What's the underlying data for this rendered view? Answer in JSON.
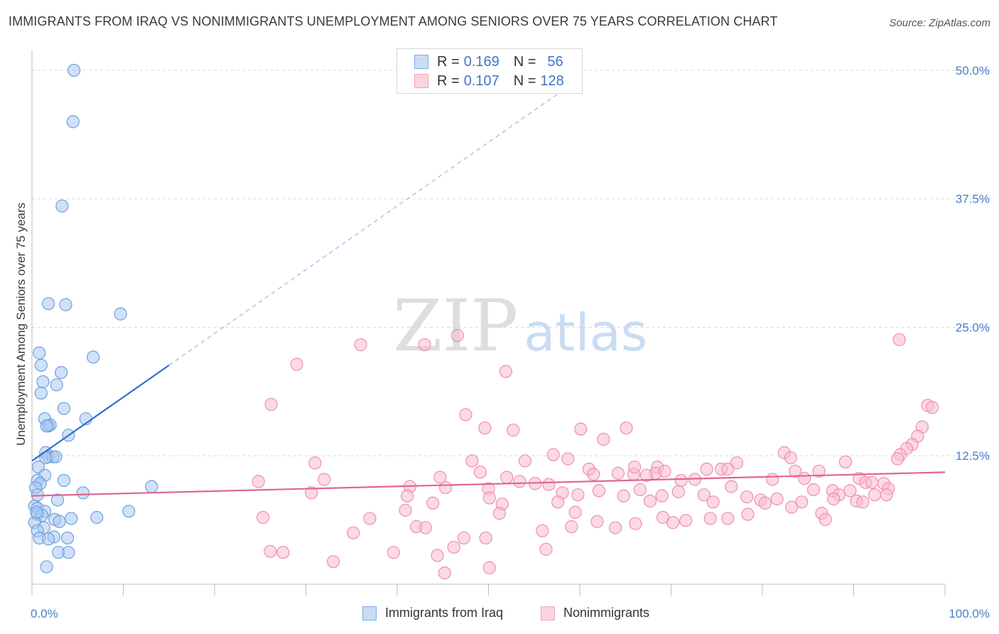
{
  "title": "IMMIGRANTS FROM IRAQ VS NONIMMIGRANTS UNEMPLOYMENT AMONG SENIORS OVER 75 YEARS CORRELATION CHART",
  "source": "Source: ZipAtlas.com",
  "watermark": {
    "part1": "ZIP",
    "part2": "atlas"
  },
  "legend": {
    "r_label": "R =",
    "n_label": "N =",
    "series": [
      {
        "name": "Immigrants from Iraq",
        "r": "0.169",
        "n": "56",
        "color": "#aac8f0",
        "stroke": "#6f9fe0"
      },
      {
        "name": "Nonimmigrants",
        "r": "0.107",
        "n": "128",
        "color": "#f7bccd",
        "stroke": "#ee8fab"
      }
    ]
  },
  "chart_data": {
    "type": "scatter",
    "title": "IMMIGRANTS FROM IRAQ VS NONIMMIGRANTS UNEMPLOYMENT AMONG SENIORS OVER 75 YEARS CORRELATION CHART",
    "xlabel": "",
    "ylabel": "Unemployment Among Seniors over 75 years",
    "xlim": [
      0,
      100
    ],
    "ylim": [
      0,
      52
    ],
    "x_tick_labels": [
      "0.0%",
      "100.0%"
    ],
    "y_ticks": [
      12.5,
      25.0,
      37.5,
      50.0
    ],
    "y_tick_labels": [
      "12.5%",
      "25.0%",
      "37.5%",
      "50.0%"
    ],
    "grid": "dashed horizontal",
    "series": [
      {
        "name": "Immigrants from Iraq",
        "color": "#aac8f0",
        "stroke": "#6f9fe0",
        "trend": {
          "x0": 0,
          "y0": 12.0,
          "x1": 15,
          "y1": 21.3,
          "dash_to_x": 60
        },
        "points": [
          [
            4.6,
            50.0
          ],
          [
            4.5,
            45.0
          ],
          [
            3.3,
            36.8
          ],
          [
            1.8,
            27.3
          ],
          [
            3.7,
            27.2
          ],
          [
            9.7,
            26.3
          ],
          [
            0.8,
            22.5
          ],
          [
            1.0,
            21.3
          ],
          [
            3.2,
            20.6
          ],
          [
            6.7,
            22.1
          ],
          [
            1.2,
            19.7
          ],
          [
            2.7,
            19.4
          ],
          [
            1.0,
            18.6
          ],
          [
            3.5,
            17.1
          ],
          [
            1.4,
            16.1
          ],
          [
            5.9,
            16.1
          ],
          [
            1.8,
            15.4
          ],
          [
            2.0,
            15.5
          ],
          [
            1.6,
            15.4
          ],
          [
            4.0,
            14.5
          ],
          [
            1.5,
            12.8
          ],
          [
            1.8,
            12.4
          ],
          [
            2.3,
            12.4
          ],
          [
            2.6,
            12.4
          ],
          [
            1.5,
            12.3
          ],
          [
            0.7,
            11.4
          ],
          [
            1.4,
            10.6
          ],
          [
            0.6,
            10.1
          ],
          [
            3.5,
            10.1
          ],
          [
            0.9,
            9.8
          ],
          [
            0.4,
            9.4
          ],
          [
            13.1,
            9.5
          ],
          [
            0.6,
            8.7
          ],
          [
            5.6,
            8.9
          ],
          [
            2.8,
            8.2
          ],
          [
            0.3,
            7.6
          ],
          [
            0.6,
            7.4
          ],
          [
            1.4,
            7.1
          ],
          [
            10.6,
            7.1
          ],
          [
            0.6,
            6.8
          ],
          [
            1.1,
            6.7
          ],
          [
            2.5,
            6.3
          ],
          [
            3.0,
            6.1
          ],
          [
            4.3,
            6.4
          ],
          [
            7.1,
            6.5
          ],
          [
            0.3,
            6.0
          ],
          [
            1.3,
            5.5
          ],
          [
            0.6,
            5.2
          ],
          [
            2.4,
            4.6
          ],
          [
            0.8,
            4.5
          ],
          [
            1.8,
            4.4
          ],
          [
            3.9,
            4.5
          ],
          [
            2.9,
            3.1
          ],
          [
            4.0,
            3.1
          ],
          [
            1.6,
            1.7
          ],
          [
            0.5,
            7.0
          ]
        ]
      },
      {
        "name": "Nonimmigrants",
        "color": "#f7bccd",
        "stroke": "#ee8fab",
        "trend": {
          "x0": 0,
          "y0": 8.6,
          "x1": 100,
          "y1": 10.9
        },
        "points": [
          [
            36.0,
            23.3
          ],
          [
            43.0,
            23.3
          ],
          [
            46.6,
            24.2
          ],
          [
            29.0,
            21.4
          ],
          [
            51.9,
            20.7
          ],
          [
            26.2,
            17.5
          ],
          [
            95.0,
            23.8
          ],
          [
            98.1,
            17.4
          ],
          [
            98.6,
            17.2
          ],
          [
            47.5,
            16.5
          ],
          [
            49.6,
            15.2
          ],
          [
            52.7,
            15.0
          ],
          [
            60.1,
            15.1
          ],
          [
            65.1,
            15.2
          ],
          [
            62.6,
            14.1
          ],
          [
            97.5,
            15.3
          ],
          [
            97.0,
            14.4
          ],
          [
            96.4,
            13.6
          ],
          [
            95.8,
            13.2
          ],
          [
            95.1,
            12.6
          ],
          [
            94.8,
            12.2
          ],
          [
            82.4,
            12.8
          ],
          [
            83.1,
            12.3
          ],
          [
            57.1,
            12.6
          ],
          [
            58.7,
            12.2
          ],
          [
            54.0,
            12.0
          ],
          [
            48.2,
            12.0
          ],
          [
            31.0,
            11.8
          ],
          [
            77.2,
            11.8
          ],
          [
            89.1,
            11.9
          ],
          [
            73.9,
            11.2
          ],
          [
            68.5,
            11.4
          ],
          [
            68.3,
            10.8
          ],
          [
            61.0,
            11.2
          ],
          [
            61.5,
            10.7
          ],
          [
            64.2,
            10.8
          ],
          [
            65.9,
            10.7
          ],
          [
            67.3,
            10.6
          ],
          [
            69.3,
            11.0
          ],
          [
            71.1,
            10.1
          ],
          [
            72.6,
            10.2
          ],
          [
            75.5,
            11.2
          ],
          [
            76.2,
            11.2
          ],
          [
            81.1,
            10.2
          ],
          [
            83.6,
            11.0
          ],
          [
            84.6,
            10.3
          ],
          [
            86.2,
            11.0
          ],
          [
            90.6,
            10.3
          ],
          [
            91.3,
            9.9
          ],
          [
            92.0,
            9.9
          ],
          [
            93.3,
            9.8
          ],
          [
            93.8,
            9.3
          ],
          [
            32.0,
            10.2
          ],
          [
            24.8,
            10.0
          ],
          [
            44.7,
            10.4
          ],
          [
            49.1,
            10.9
          ],
          [
            53.4,
            10.0
          ],
          [
            55.1,
            9.8
          ],
          [
            56.6,
            9.7
          ],
          [
            50.0,
            9.3
          ],
          [
            41.4,
            9.5
          ],
          [
            45.3,
            9.4
          ],
          [
            58.1,
            8.9
          ],
          [
            59.8,
            8.7
          ],
          [
            62.1,
            9.1
          ],
          [
            64.8,
            8.6
          ],
          [
            66.6,
            9.2
          ],
          [
            69.0,
            8.6
          ],
          [
            70.8,
            9.0
          ],
          [
            73.6,
            8.7
          ],
          [
            76.6,
            9.5
          ],
          [
            78.3,
            8.5
          ],
          [
            79.8,
            8.2
          ],
          [
            81.6,
            8.3
          ],
          [
            85.6,
            9.2
          ],
          [
            87.7,
            9.1
          ],
          [
            88.4,
            8.7
          ],
          [
            89.6,
            9.1
          ],
          [
            92.3,
            8.7
          ],
          [
            93.6,
            8.7
          ],
          [
            30.6,
            8.9
          ],
          [
            41.1,
            8.6
          ],
          [
            50.1,
            8.4
          ],
          [
            51.5,
            7.8
          ],
          [
            57.6,
            8.0
          ],
          [
            67.7,
            8.1
          ],
          [
            74.6,
            8.0
          ],
          [
            80.3,
            7.9
          ],
          [
            84.3,
            8.0
          ],
          [
            87.8,
            8.3
          ],
          [
            90.3,
            8.1
          ],
          [
            91.0,
            8.0
          ],
          [
            40.9,
            7.2
          ],
          [
            51.2,
            6.9
          ],
          [
            59.5,
            7.0
          ],
          [
            69.1,
            6.5
          ],
          [
            74.3,
            6.4
          ],
          [
            83.2,
            7.5
          ],
          [
            86.5,
            6.9
          ],
          [
            86.9,
            6.3
          ],
          [
            78.4,
            6.8
          ],
          [
            76.2,
            6.4
          ],
          [
            71.6,
            6.2
          ],
          [
            70.2,
            6.0
          ],
          [
            61.9,
            6.1
          ],
          [
            66.1,
            5.9
          ],
          [
            63.9,
            5.5
          ],
          [
            59.1,
            5.6
          ],
          [
            47.3,
            4.5
          ],
          [
            49.7,
            4.5
          ],
          [
            55.9,
            5.2
          ],
          [
            42.1,
            5.6
          ],
          [
            43.1,
            5.5
          ],
          [
            25.3,
            6.5
          ],
          [
            26.1,
            3.2
          ],
          [
            27.5,
            3.1
          ],
          [
            33.0,
            2.2
          ],
          [
            39.6,
            3.1
          ],
          [
            44.4,
            2.8
          ],
          [
            46.2,
            3.6
          ],
          [
            56.3,
            3.4
          ],
          [
            50.1,
            1.6
          ],
          [
            45.2,
            1.1
          ],
          [
            37.0,
            6.4
          ],
          [
            35.2,
            5.0
          ],
          [
            52.0,
            10.4
          ],
          [
            43.9,
            7.9
          ],
          [
            66.0,
            11.4
          ]
        ]
      }
    ]
  }
}
